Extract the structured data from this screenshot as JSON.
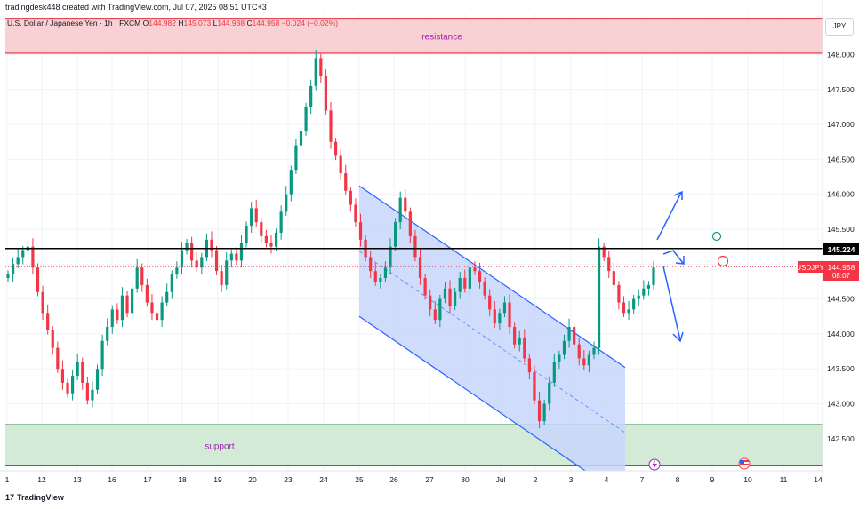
{
  "header": {
    "creator": "tradingdesk448 created with TradingView.com, Jul 07, 2025 08:51 UTC+3",
    "instrument": "U.S. Dollar / Japanese Yen · 1h · FXCM",
    "o_label": "O",
    "o_value": "144.982",
    "h_label": "H",
    "h_value": "145.073",
    "l_label": "L",
    "l_value": "144.938",
    "c_label": "C",
    "c_value": "144.958",
    "change": "−0.024 (−0.02%)"
  },
  "currency": "JPY",
  "footer": {
    "brand": "TradingView",
    "logo": "17"
  },
  "colors": {
    "up": "#089981",
    "down": "#f23645",
    "resistance_fill": "#f9d0d3",
    "resistance_line": "#e0303a",
    "support_fill": "#d3ead6",
    "support_line": "#2e8540",
    "channel_fill": "#c7d6fb",
    "channel_line": "#2962ff",
    "level_line": "#000000",
    "arrows": "#2962ff"
  },
  "chart_data": {
    "type": "candlestick",
    "symbol": "USDJPY",
    "timeframe": "1h",
    "ylim": [
      142.2,
      148.3
    ],
    "y_ticks": [
      "148.000",
      "147.500",
      "147.000",
      "146.500",
      "146.000",
      "145.500",
      "145.000",
      "144.500",
      "144.000",
      "143.500",
      "143.000",
      "142.500"
    ],
    "x_ticks": [
      "1",
      "12",
      "13",
      "16",
      "17",
      "18",
      "19",
      "20",
      "23",
      "24",
      "25",
      "26",
      "27",
      "30",
      "Jul",
      "2",
      "3",
      "4",
      "7",
      "8",
      "9",
      "10",
      "11",
      "14"
    ],
    "zones": [
      {
        "name": "resistance",
        "label": "resistance",
        "from": 148.02,
        "to": 148.52
      },
      {
        "name": "support",
        "label": "support",
        "from": 142.11,
        "to": 142.7
      }
    ],
    "horizontal_level": {
      "value": 145.224,
      "label": "145.224"
    },
    "last_price": {
      "symbol": "USDJPY",
      "value": "144.958",
      "countdown": "08:07"
    },
    "channel": {
      "upper": [
        [
          "25",
          146.12
        ],
        [
          "3.5",
          143.52
        ]
      ],
      "lower": [
        [
          "25",
          144.25
        ],
        [
          "3.5",
          141.65
        ]
      ]
    },
    "closes": [
      144.85,
      145.0,
      145.1,
      145.2,
      145.25,
      144.95,
      144.6,
      144.3,
      144.05,
      143.8,
      143.5,
      143.3,
      143.15,
      143.4,
      143.6,
      143.3,
      143.05,
      143.2,
      143.5,
      143.9,
      144.1,
      144.35,
      144.2,
      144.55,
      144.3,
      144.65,
      144.95,
      144.7,
      144.45,
      144.3,
      144.2,
      144.45,
      144.6,
      144.85,
      144.95,
      145.2,
      145.3,
      145.05,
      144.95,
      145.1,
      145.35,
      145.2,
      144.9,
      144.7,
      145.05,
      145.15,
      145.05,
      145.3,
      145.55,
      145.8,
      145.6,
      145.4,
      145.3,
      145.25,
      145.45,
      145.75,
      146.0,
      146.35,
      146.7,
      146.9,
      147.25,
      147.55,
      147.95,
      147.7,
      147.2,
      146.75,
      146.55,
      146.3,
      146.05,
      145.85,
      145.6,
      145.35,
      145.1,
      144.9,
      144.75,
      144.8,
      144.95,
      145.25,
      145.6,
      145.95,
      145.75,
      145.4,
      145.1,
      144.8,
      144.55,
      144.35,
      144.2,
      144.5,
      144.65,
      144.4,
      144.6,
      144.8,
      144.65,
      144.95,
      144.9,
      144.75,
      144.55,
      144.35,
      144.15,
      144.3,
      144.45,
      144.1,
      143.85,
      143.95,
      143.65,
      143.45,
      143.05,
      142.75,
      143.0,
      143.3,
      143.6,
      143.7,
      143.9,
      144.1,
      143.85,
      143.65,
      143.55,
      143.7,
      143.8,
      145.25,
      145.1,
      144.9,
      144.7,
      144.45,
      144.3,
      144.35,
      144.5,
      144.55,
      144.65,
      144.7,
      144.95
    ]
  },
  "channel_label": "USDJPY",
  "price_tag": "144.958",
  "level_tag": "145.224",
  "event_icons": [
    "lightning-event",
    "us-flag-event"
  ]
}
